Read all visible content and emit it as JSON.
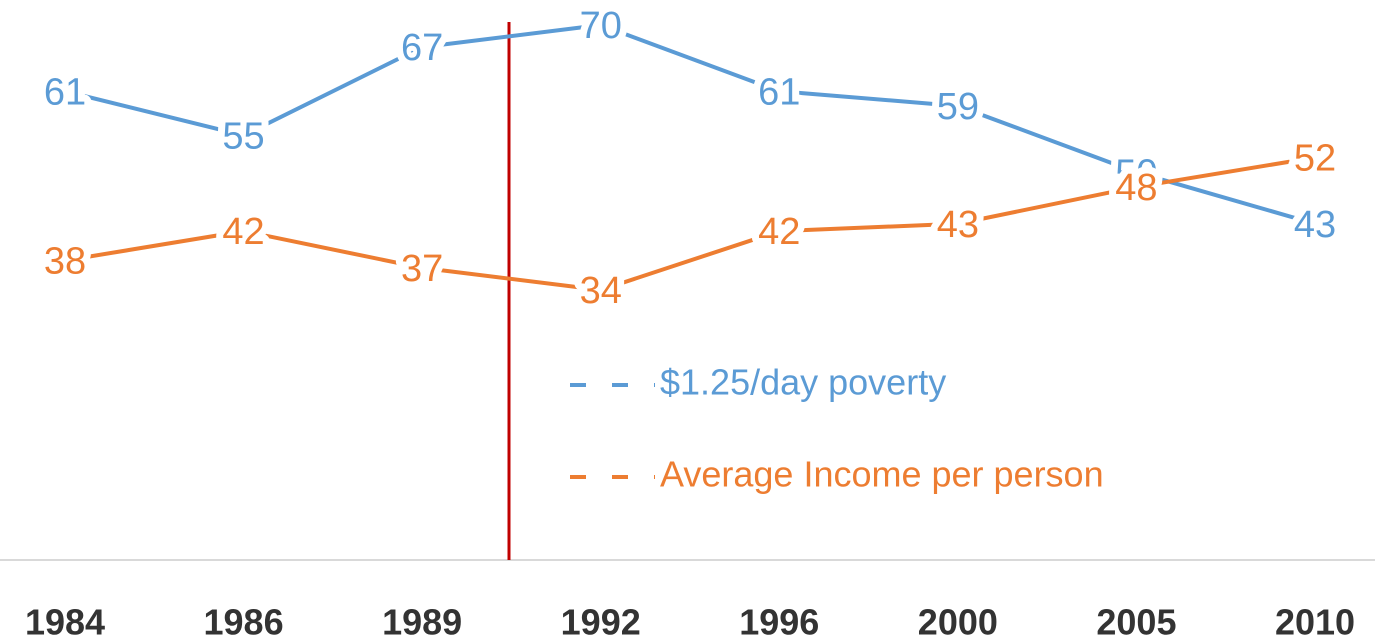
{
  "chart_data": {
    "type": "line",
    "categories": [
      "1984",
      "1986",
      "1989",
      "1992",
      "1996",
      "2000",
      "2005",
      "2010"
    ],
    "series": [
      {
        "name": "$1.25/day poverty",
        "color": "#5b9bd5",
        "values": [
          61,
          55,
          67,
          70,
          61,
          59,
          50,
          43
        ]
      },
      {
        "name": "Average Income per person",
        "color": "#ed7d31",
        "values": [
          38,
          42,
          37,
          34,
          42,
          43,
          48,
          52
        ]
      }
    ]
  }
}
